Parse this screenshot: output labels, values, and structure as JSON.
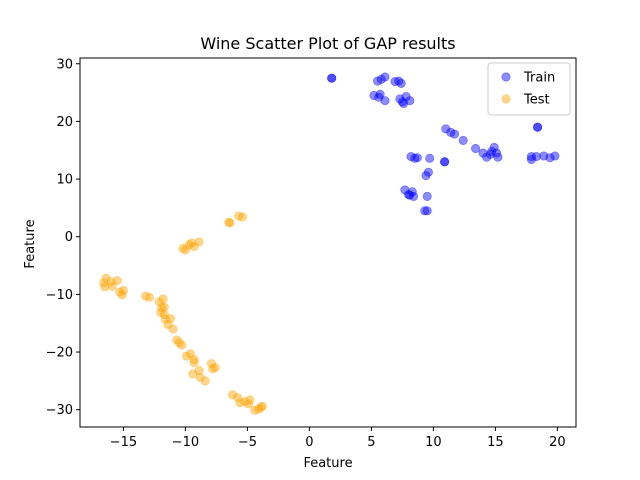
{
  "chart_data": {
    "type": "scatter",
    "title": "Wine Scatter Plot of GAP results",
    "xlabel": "Feature",
    "ylabel": "Feature",
    "xlim": [
      -18.5,
      21.5
    ],
    "ylim": [
      -33,
      31
    ],
    "xticks": [
      -15,
      -10,
      -5,
      0,
      5,
      10,
      15,
      20
    ],
    "yticks": [
      -30,
      -20,
      -10,
      0,
      10,
      20,
      30
    ],
    "grid": false,
    "legend_position": "top-right",
    "series": [
      {
        "name": "Train",
        "color": "#0000ff",
        "opacity": 0.45,
        "points": [
          [
            1.8,
            27.5
          ],
          [
            1.8,
            27.5
          ],
          [
            5.5,
            27.0
          ],
          [
            5.8,
            27.3
          ],
          [
            6.1,
            27.7
          ],
          [
            6.9,
            26.9
          ],
          [
            7.2,
            27.0
          ],
          [
            7.4,
            26.6
          ],
          [
            5.2,
            24.5
          ],
          [
            5.7,
            24.7
          ],
          [
            5.6,
            24.2
          ],
          [
            6.1,
            23.6
          ],
          [
            7.3,
            23.9
          ],
          [
            7.6,
            23.1
          ],
          [
            7.8,
            24.3
          ],
          [
            7.5,
            23.4
          ],
          [
            8.1,
            23.6
          ],
          [
            11.0,
            18.7
          ],
          [
            11.4,
            18.1
          ],
          [
            11.7,
            17.8
          ],
          [
            12.4,
            16.7
          ],
          [
            13.4,
            15.3
          ],
          [
            14.0,
            14.5
          ],
          [
            14.3,
            13.8
          ],
          [
            14.7,
            14.8
          ],
          [
            14.9,
            15.5
          ],
          [
            15.1,
            14.5
          ],
          [
            15.2,
            13.8
          ],
          [
            14.6,
            14.3
          ],
          [
            18.4,
            19.0
          ],
          [
            18.4,
            19.0
          ],
          [
            17.9,
            13.9
          ],
          [
            17.9,
            13.4
          ],
          [
            18.3,
            13.9
          ],
          [
            18.9,
            14.0
          ],
          [
            19.4,
            13.7
          ],
          [
            19.8,
            14.0
          ],
          [
            8.2,
            13.9
          ],
          [
            8.5,
            13.6
          ],
          [
            8.7,
            13.7
          ],
          [
            9.7,
            13.6
          ],
          [
            10.9,
            13.0
          ],
          [
            10.9,
            13.0
          ],
          [
            9.4,
            10.6
          ],
          [
            9.6,
            11.2
          ],
          [
            7.7,
            8.1
          ],
          [
            8.0,
            7.3
          ],
          [
            8.3,
            7.8
          ],
          [
            8.4,
            7.0
          ],
          [
            8.1,
            7.2
          ],
          [
            9.5,
            7.0
          ],
          [
            9.3,
            4.5
          ],
          [
            9.5,
            4.5
          ]
        ]
      },
      {
        "name": "Test",
        "color": "#ffa500",
        "opacity": 0.45,
        "points": [
          [
            -5.7,
            3.6
          ],
          [
            -5.4,
            3.4
          ],
          [
            -6.5,
            2.5
          ],
          [
            -6.4,
            2.4
          ],
          [
            -8.9,
            -0.9
          ],
          [
            -9.3,
            -1.7
          ],
          [
            -9.5,
            -1.1
          ],
          [
            -9.7,
            -1.4
          ],
          [
            -10.0,
            -2.3
          ],
          [
            -10.2,
            -2.0
          ],
          [
            -16.6,
            -8.0
          ],
          [
            -16.4,
            -7.2
          ],
          [
            -16.5,
            -8.7
          ],
          [
            -16.0,
            -7.8
          ],
          [
            -15.9,
            -8.6
          ],
          [
            -15.5,
            -7.6
          ],
          [
            -15.3,
            -9.6
          ],
          [
            -15.0,
            -9.3
          ],
          [
            -15.1,
            -10.1
          ],
          [
            -13.2,
            -10.3
          ],
          [
            -12.9,
            -10.5
          ],
          [
            -12.1,
            -11.3
          ],
          [
            -11.8,
            -10.8
          ],
          [
            -11.9,
            -12.3
          ],
          [
            -12.0,
            -13.1
          ],
          [
            -11.7,
            -12.2
          ],
          [
            -11.6,
            -14.3
          ],
          [
            -11.4,
            -15.2
          ],
          [
            -11.2,
            -14.2
          ],
          [
            -11.0,
            -16.0
          ],
          [
            -11.7,
            -13.5
          ],
          [
            -10.7,
            -17.9
          ],
          [
            -10.5,
            -18.4
          ],
          [
            -10.3,
            -18.8
          ],
          [
            -9.9,
            -20.7
          ],
          [
            -9.6,
            -20.3
          ],
          [
            -9.3,
            -21.3
          ],
          [
            -9.3,
            -21.8
          ],
          [
            -9.4,
            -23.8
          ],
          [
            -8.9,
            -23.2
          ],
          [
            -8.8,
            -24.4
          ],
          [
            -8.4,
            -25.0
          ],
          [
            -7.9,
            -22.0
          ],
          [
            -7.8,
            -22.9
          ],
          [
            -7.6,
            -22.7
          ],
          [
            -6.2,
            -27.4
          ],
          [
            -5.8,
            -27.9
          ],
          [
            -5.6,
            -28.8
          ],
          [
            -5.2,
            -28.6
          ],
          [
            -4.9,
            -29.0
          ],
          [
            -4.8,
            -28.3
          ],
          [
            -4.4,
            -30.1
          ],
          [
            -4.1,
            -29.9
          ],
          [
            -3.9,
            -29.6
          ],
          [
            -3.8,
            -29.4
          ]
        ]
      }
    ]
  }
}
